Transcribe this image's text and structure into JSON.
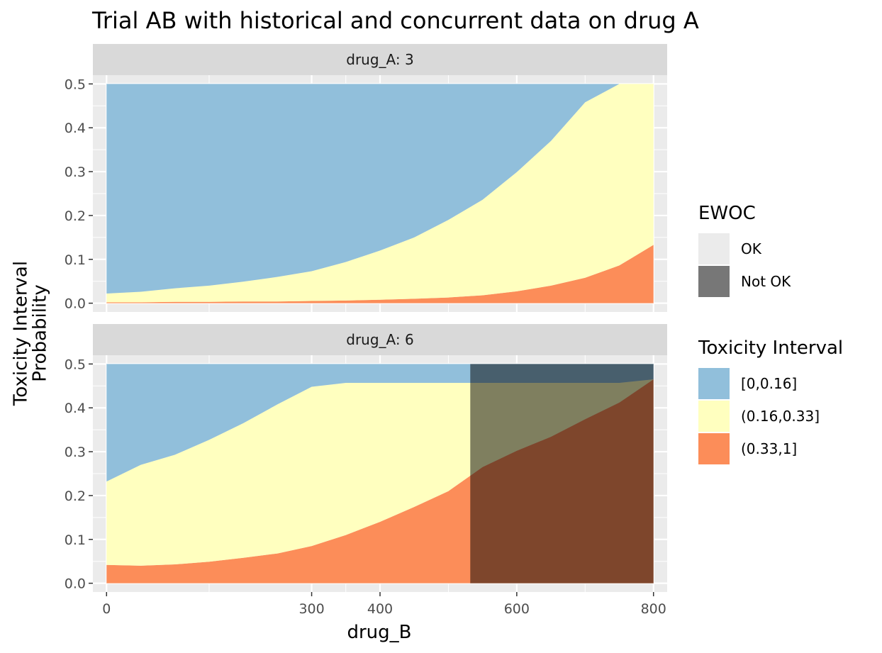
{
  "chart_data": {
    "type": "area",
    "title": "Trial AB with historical and concurrent data on drug A",
    "xlabel": "drug_B",
    "ylabel": "Toxicity Interval\nProbability",
    "xlim": [
      -20,
      820
    ],
    "ylim": [
      -0.02,
      0.52
    ],
    "x_ticks": [
      0,
      300,
      400,
      600,
      800
    ],
    "y_ticks": [
      0.0,
      0.1,
      0.2,
      0.3,
      0.4,
      0.5
    ],
    "y_tick_labels": [
      "0.0",
      "0.1",
      "0.2",
      "0.3",
      "0.4",
      "0.5"
    ],
    "stack_cap": 0.5,
    "grid": true,
    "facets": [
      {
        "label": "drug_A: 3",
        "ewoc_cutoff": null,
        "x": [
          0,
          50,
          100,
          150,
          200,
          250,
          300,
          350,
          400,
          450,
          500,
          550,
          600,
          650,
          700,
          750,
          800
        ],
        "series": [
          {
            "name": "(0.33,1]",
            "values": [
              0.002,
              0.002,
              0.003,
              0.003,
              0.004,
              0.004,
              0.005,
              0.006,
              0.008,
              0.01,
              0.013,
              0.018,
              0.027,
              0.04,
              0.058,
              0.086,
              0.133
            ]
          },
          {
            "name": "(0.16,0.33]",
            "values": [
              0.02,
              0.024,
              0.031,
              0.037,
              0.045,
              0.056,
              0.068,
              0.088,
              0.112,
              0.14,
              0.177,
              0.218,
              0.272,
              0.33,
              0.4,
              0.414,
              0.367
            ]
          },
          {
            "name": "[0,0.16]",
            "values": [
              0.478,
              0.474,
              0.466,
              0.46,
              0.451,
              0.44,
              0.427,
              0.406,
              0.38,
              0.35,
              0.31,
              0.264,
              0.201,
              0.13,
              0.042,
              0.0,
              0.0
            ]
          }
        ]
      },
      {
        "label": "drug_A: 6",
        "ewoc_cutoff": 532,
        "x": [
          0,
          50,
          100,
          150,
          200,
          250,
          300,
          350,
          400,
          450,
          500,
          550,
          600,
          650,
          700,
          750,
          800
        ],
        "series": [
          {
            "name": "(0.33,1]",
            "values": [
              0.042,
              0.04,
              0.043,
              0.049,
              0.058,
              0.068,
              0.085,
              0.11,
              0.14,
              0.174,
              0.21,
              0.265,
              0.302,
              0.334,
              0.374,
              0.412,
              0.465
            ]
          },
          {
            "name": "(0.16,0.33]",
            "values": [
              0.19,
              0.23,
              0.25,
              0.278,
              0.307,
              0.34,
              0.363,
              0.347,
              0.317,
              0.283,
              0.247,
              0.192,
              0.155,
              0.123,
              0.083,
              0.045,
              0.0
            ]
          },
          {
            "name": "[0,0.16]",
            "values": [
              0.268,
              0.23,
              0.207,
              0.173,
              0.135,
              0.092,
              0.052,
              0.043,
              0.043,
              0.043,
              0.043,
              0.043,
              0.043,
              0.043,
              0.043,
              0.043,
              0.035
            ]
          }
        ]
      }
    ],
    "legends": [
      {
        "title": "EWOC",
        "entries": [
          {
            "label": "OK",
            "color": "#ebebeb"
          },
          {
            "label": "Not OK",
            "color": "#777777"
          }
        ]
      },
      {
        "title": "Toxicity Interval",
        "entries": [
          {
            "label": "[0,0.16]",
            "color": "#91bfdb"
          },
          {
            "label": "(0.16,0.33]",
            "color": "#ffffbf"
          },
          {
            "label": "(0.33,1]",
            "color": "#fc8d59"
          }
        ]
      }
    ],
    "legend_position": "right",
    "colors": {
      "[0,0.16]": "#91bfdb",
      "(0.16,0.33]": "#ffffbf",
      "(0.33,1]": "#fc8d59",
      "ewoc_not_ok_overlay": "#000000",
      "panel_background": "#ebebeb",
      "strip_background": "#d9d9d9"
    }
  }
}
